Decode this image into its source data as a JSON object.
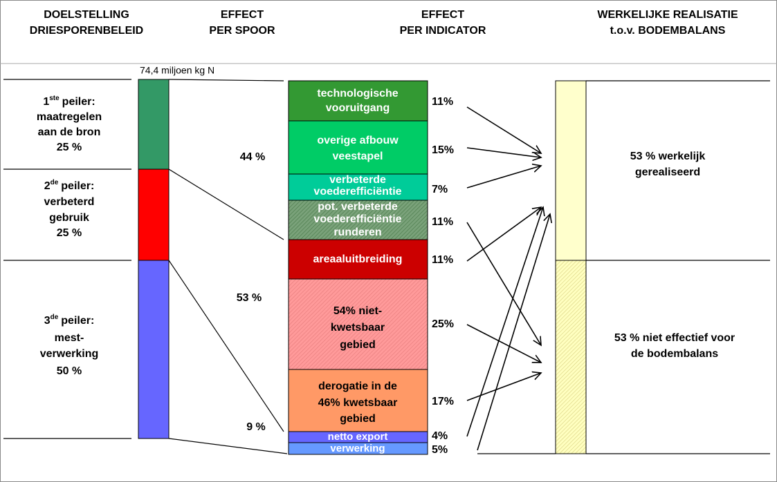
{
  "header": {
    "columns": [
      [
        "DOELSTELLING",
        "DRIESPORENBELEID"
      ],
      [
        "EFFECT",
        "PER SPOOR"
      ],
      [
        "EFFECT",
        "PER INDICATOR"
      ],
      [
        "WERKELIJKE REALISATIE",
        "t.o.v. BODEMBALANS"
      ]
    ]
  },
  "total_label": "74,4 miljoen kg N",
  "pillars": [
    {
      "num": "1",
      "sup": "ste",
      "head": "peiler:",
      "lines": [
        "maatregelen",
        "aan de bron",
        "25 %"
      ]
    },
    {
      "num": "2",
      "sup": "de",
      "head": "peiler:",
      "lines": [
        "verbeterd",
        "gebruik",
        "25 %"
      ]
    },
    {
      "num": "3",
      "sup": "de",
      "head": "peiler:",
      "lines": [
        "mest-",
        "verwerking",
        "50 %"
      ]
    }
  ],
  "track_effects": [
    "44 %",
    "53 %",
    "9 %"
  ],
  "indicators": [
    {
      "lines": [
        "technologische",
        "vooruitgang"
      ],
      "share": "11%"
    },
    {
      "lines": [
        "overige afbouw",
        "veestapel"
      ],
      "share": "15%"
    },
    {
      "lines": [
        "verbeterde",
        "voederefficiëntie"
      ],
      "share": "7%"
    },
    {
      "lines": [
        "pot. verbeterde",
        "voederefficiëntie",
        "runderen"
      ],
      "share": "11%"
    },
    {
      "lines": [
        "areaaluitbreiding"
      ],
      "share": "11%"
    },
    {
      "lines": [
        "54% niet-",
        "kwetsbaar",
        "gebied"
      ],
      "share": "25%"
    },
    {
      "lines": [
        "derogatie in de",
        "46% kwetsbaar",
        "gebied"
      ],
      "share": "17%"
    },
    {
      "lines": [
        "netto export"
      ],
      "share": "4%"
    },
    {
      "lines": [
        "verwerking"
      ],
      "share": "5%"
    }
  ],
  "realisation": [
    [
      "53 % werkelijk",
      "gerealiseerd"
    ],
    [
      "53 % niet effectief voor",
      "de bodembalans"
    ]
  ]
}
